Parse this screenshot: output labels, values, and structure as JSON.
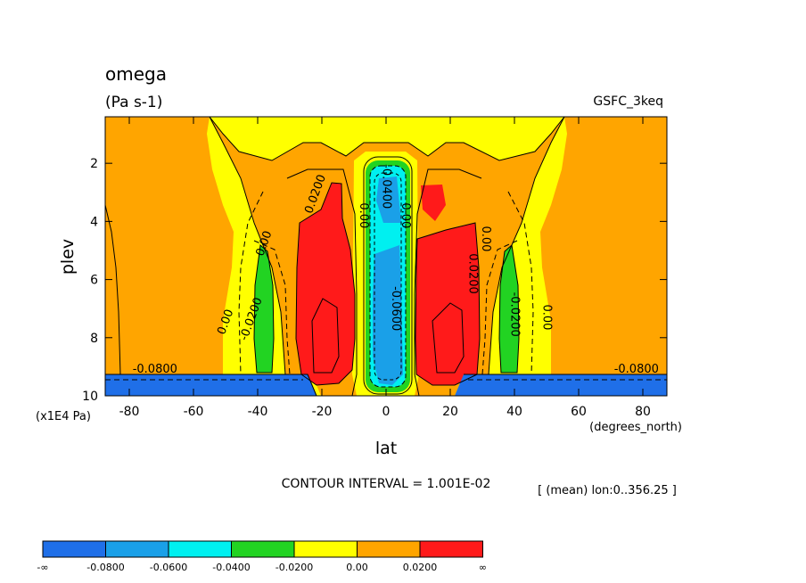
{
  "chart_data": {
    "type": "contour",
    "title": "omega",
    "units": "(Pa s-1)",
    "dataset_label": "GSFC_3keq",
    "xlabel": "lat",
    "x_units": "(degrees_north)",
    "ylabel": "plev",
    "y_units": "(x1E4 Pa)",
    "xlim": [
      -87.5,
      87.5
    ],
    "ylim": [
      10,
      0.4
    ],
    "x_ticks": [
      -80,
      -60,
      -40,
      -20,
      0,
      20,
      40,
      60,
      80
    ],
    "x_tick_labels": [
      "-80",
      "-60",
      "-40",
      "-20",
      "0",
      "20",
      "40",
      "60",
      "80"
    ],
    "y_ticks": [
      2,
      4,
      6,
      8,
      10
    ],
    "y_tick_labels": [
      "2",
      "4",
      "6",
      "8",
      "10"
    ],
    "contour_interval_text": "CONTOUR INTERVAL = 1.001E-02",
    "mean_text": "[ (mean) lon:0..356.25 ]",
    "levels": [
      "-∞",
      "-0.0800",
      "-0.0600",
      "-0.0400",
      "-0.0200",
      "0.00",
      "0.0200",
      "∞"
    ],
    "level_colors": [
      "#1f6fe8",
      "#1aa0e8",
      "#00f0f0",
      "#22d322",
      "#ffff00",
      "#ffa500",
      "#ff1a1a"
    ],
    "contour_labels": [
      {
        "text": "0.0200",
        "lat": -21,
        "plev": 3.1
      },
      {
        "text": "0.00",
        "lat": -8,
        "plev": 3.8
      },
      {
        "text": "-0.0400",
        "lat": -1,
        "plev": 2.8
      },
      {
        "text": "0.00",
        "lat": 5,
        "plev": 3.8
      },
      {
        "text": "0.00",
        "lat": -37,
        "plev": 4.8
      },
      {
        "text": "0.00",
        "lat": -49,
        "plev": 7.5
      },
      {
        "text": "-0.0200",
        "lat": -41,
        "plev": 7.4
      },
      {
        "text": "-0.0800",
        "lat": -72,
        "plev": 9.2
      },
      {
        "text": "-0.0800",
        "lat": 78,
        "plev": 9.2
      },
      {
        "text": "0.00",
        "lat": 30,
        "plev": 4.6
      },
      {
        "text": "0.0200",
        "lat": 26,
        "plev": 5.8
      },
      {
        "text": "-0.0200",
        "lat": 39,
        "plev": 7.2
      },
      {
        "text": "0.00",
        "lat": 49,
        "plev": 7.3
      },
      {
        "text": "-0.0600",
        "lat": 2,
        "plev": 7.0
      }
    ]
  }
}
